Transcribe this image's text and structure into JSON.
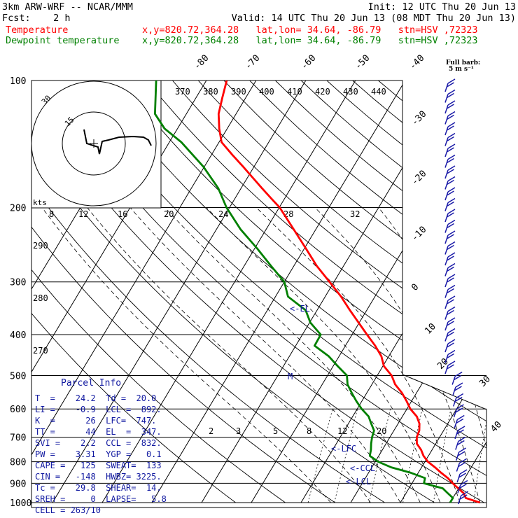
{
  "header": {
    "model": "3km ARW-WRF -- NCAR/MMM",
    "init": "Init: 12 UTC Thu 20 Jun 13",
    "fcst": "Fcst:    2 h",
    "valid": "Valid: 14 UTC Thu 20 Jun 13 (08 MDT Thu 20 Jun 13)",
    "temp_label": "Temperature",
    "dew_label": "Dewpoint temperature",
    "temp_loc": "x,y=820.72,364.28   lat,lon= 34.64, -86.79   stn=HSV ,72323",
    "dew_loc": "x,y=820.72,364.28   lat,lon= 34.64, -86.79   stn=HSV ,72323"
  },
  "colors": {
    "temperature": "#ff0000",
    "dewpoint": "#008000",
    "barb": "#1a1aa8",
    "parcel_text": "#1018a0",
    "grid": "#000000"
  },
  "barb_legend": {
    "title": "Full barb:",
    "value": "5 m s⁻¹"
  },
  "hodograph": {
    "unit": "kts",
    "ring_labels": [
      "15",
      "30"
    ]
  },
  "parcel_info": {
    "title": "Parcel Info",
    "rows": [
      "T  =    24.2  Td =  20.0",
      "LI =    -0.9  LCL =  892.",
      "K  =      26  LFC=  747.",
      "TT =      44  EL  =  347.",
      "SVI =    2.2  CCL =  832.",
      "PW =    3.31  YGP =   0.1",
      "CAPE =   125  SWEAT=  133",
      "CIN =   -148  HWBZ= 3225.",
      "Tc =    29.8  SHEAR=  14.",
      "SREH =     0  LAPSE=   5.8",
      "CELL = 263/10"
    ]
  },
  "chart_data": {
    "type": "line",
    "title": "",
    "xlabel": "",
    "ylabel": "",
    "y_scale": "log",
    "ylim": [
      1000,
      100
    ],
    "pressure_ticks": [
      100,
      200,
      300,
      400,
      500,
      600,
      700,
      800,
      900,
      1000
    ],
    "isotherm_labels": [
      -80,
      -70,
      -60,
      -50,
      -40,
      -30,
      -20,
      -10,
      0,
      10,
      20,
      30,
      40
    ],
    "theta_labels": [
      370,
      380,
      390,
      400,
      410,
      420,
      430,
      440
    ],
    "theta_lower_labels": [
      290,
      280,
      270
    ],
    "mixing_ratio_upper_labels": [
      8,
      12,
      16,
      20,
      24,
      28,
      32
    ],
    "mixing_ratio_lower_labels": [
      2,
      3,
      5,
      8,
      12,
      20
    ],
    "annotations": [
      "<-EL",
      "<-LFC",
      "<-CCL",
      "<-LCL",
      "M"
    ],
    "series": [
      {
        "name": "Temperature",
        "points": [
          [
            1000,
            26
          ],
          [
            975,
            22.6
          ],
          [
            950,
            21.6
          ],
          [
            925,
            19.9
          ],
          [
            900,
            18.2
          ],
          [
            875,
            16.6
          ],
          [
            850,
            14.6
          ],
          [
            825,
            12.7
          ],
          [
            800,
            10.6
          ],
          [
            775,
            9.0
          ],
          [
            750,
            7.8
          ],
          [
            725,
            6.2
          ],
          [
            700,
            5.4
          ],
          [
            675,
            5.1
          ],
          [
            650,
            4.3
          ],
          [
            625,
            2.9
          ],
          [
            600,
            0.7
          ],
          [
            575,
            -1.0
          ],
          [
            550,
            -2.9
          ],
          [
            525,
            -5.3
          ],
          [
            500,
            -7.1
          ],
          [
            475,
            -9.8
          ],
          [
            450,
            -11.5
          ],
          [
            425,
            -14.0
          ],
          [
            400,
            -17.0
          ],
          [
            375,
            -20.1
          ],
          [
            350,
            -23.4
          ],
          [
            325,
            -26.8
          ],
          [
            300,
            -30.9
          ],
          [
            275,
            -35.4
          ],
          [
            250,
            -39.7
          ],
          [
            225,
            -44.5
          ],
          [
            200,
            -49.9
          ],
          [
            190,
            -52.8
          ],
          [
            180,
            -55.8
          ],
          [
            170,
            -58.9
          ],
          [
            160,
            -62.2
          ],
          [
            150,
            -65.8
          ],
          [
            140,
            -69.5
          ],
          [
            130,
            -71.6
          ],
          [
            120,
            -73.5
          ],
          [
            110,
            -74.7
          ],
          [
            100,
            -75.9
          ]
        ]
      },
      {
        "name": "Dewpoint temperature",
        "points": [
          [
            1000,
            20
          ],
          [
            975,
            20.0
          ],
          [
            950,
            18.4
          ],
          [
            925,
            16.8
          ],
          [
            900,
            12.4
          ],
          [
            875,
            12.0
          ],
          [
            850,
            8.5
          ],
          [
            825,
            3.9
          ],
          [
            800,
            0.6
          ],
          [
            775,
            -1.8
          ],
          [
            750,
            -2.3
          ],
          [
            725,
            -3.0
          ],
          [
            700,
            -3.6
          ],
          [
            675,
            -4.0
          ],
          [
            650,
            -5.4
          ],
          [
            625,
            -6.8
          ],
          [
            600,
            -9.1
          ],
          [
            575,
            -11.1
          ],
          [
            550,
            -13.0
          ],
          [
            525,
            -14.9
          ],
          [
            500,
            -16.1
          ],
          [
            475,
            -19.1
          ],
          [
            450,
            -22.1
          ],
          [
            425,
            -26.2
          ],
          [
            400,
            -26.3
          ],
          [
            375,
            -29.8
          ],
          [
            350,
            -32.3
          ],
          [
            325,
            -37.5
          ],
          [
            300,
            -40.0
          ],
          [
            275,
            -44.6
          ],
          [
            250,
            -49.5
          ],
          [
            225,
            -55.2
          ],
          [
            200,
            -60.6
          ],
          [
            180,
            -64.6
          ],
          [
            160,
            -70.2
          ],
          [
            140,
            -77.6
          ],
          [
            130,
            -82.6
          ],
          [
            120,
            -86.3
          ],
          [
            100,
            -90.1
          ]
        ]
      }
    ]
  }
}
